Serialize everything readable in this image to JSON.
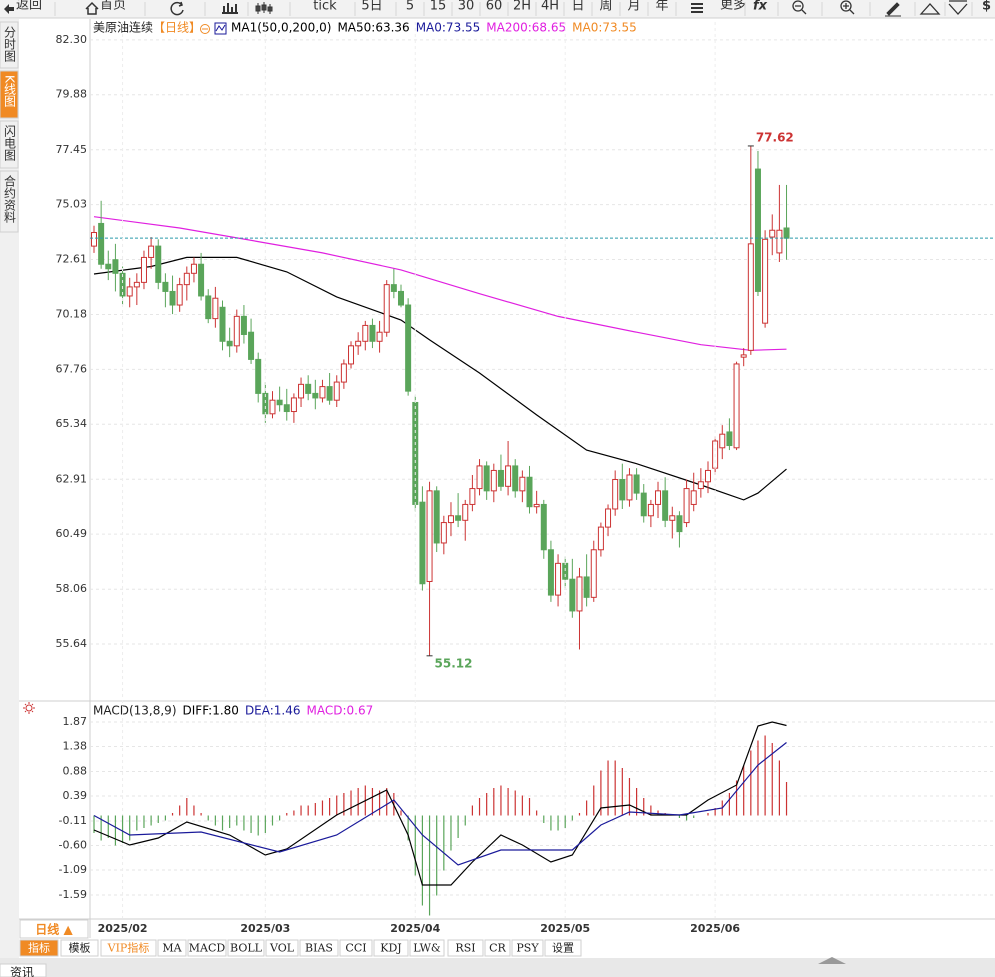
{
  "toolbar": {
    "back": "返回",
    "home": "首页",
    "buttons": [
      "tick",
      "5日",
      "5",
      "15",
      "30",
      "60",
      "2H",
      "4H",
      "日",
      "周",
      "月",
      "年"
    ],
    "more": "更多",
    "fx": "fx",
    "end": "$"
  },
  "sidebar": [
    "分时图",
    "K线图",
    "闪电图",
    "合约资料"
  ],
  "sidebar_active": 1,
  "period_button": "日线 ▲",
  "indicator_tabs": [
    "指标",
    "模板",
    "VIP指标",
    "MA",
    "MACD",
    "BOLL",
    "VOL",
    "BIAS",
    "CCI",
    "KDJ",
    "LW&",
    "RSI",
    "CR",
    "PSY",
    "设置"
  ],
  "footer_tab": "资讯",
  "chart_data": [
    {
      "type": "candlestick",
      "title": "美原油连续",
      "period": "【日线】",
      "legend": [
        {
          "text": "MA1(50,0,200,0)",
          "color": "#000000"
        },
        {
          "text": "MA50:63.36",
          "color": "#000000"
        },
        {
          "text": "MA0:73.55",
          "color": "#1a1a9a"
        },
        {
          "text": "MA200:68.65",
          "color": "#e020e0"
        },
        {
          "text": "MA0:73.55",
          "color": "#f08a24"
        }
      ],
      "up_color": "#cc3333",
      "down_color": "#5aa55a",
      "mark_extremes": true,
      "last_line": true,
      "last_line_color": "#2a9aaa",
      "candles": [
        [
          73.2,
          74.1,
          72.9,
          73.8
        ],
        [
          74.2,
          75.2,
          72.2,
          72.4
        ],
        [
          72.4,
          73.0,
          71.7,
          72.2
        ],
        [
          72.6,
          73.3,
          71.2,
          72.0
        ],
        [
          72.0,
          72.3,
          70.6,
          71.0
        ],
        [
          71.0,
          71.8,
          70.5,
          71.4
        ],
        [
          71.4,
          72.0,
          70.6,
          71.6
        ],
        [
          71.6,
          73.0,
          71.3,
          72.7
        ],
        [
          72.7,
          73.6,
          72.2,
          73.2
        ],
        [
          73.2,
          73.5,
          71.3,
          71.6
        ],
        [
          71.6,
          72.0,
          70.5,
          71.2
        ],
        [
          71.2,
          71.9,
          70.2,
          70.6
        ],
        [
          70.6,
          71.8,
          70.3,
          71.5
        ],
        [
          71.5,
          72.3,
          70.8,
          72.0
        ],
        [
          72.0,
          72.7,
          71.6,
          72.4
        ],
        [
          72.4,
          72.9,
          70.8,
          71.0
        ],
        [
          71.0,
          71.3,
          69.8,
          70.0
        ],
        [
          70.0,
          71.4,
          69.6,
          70.9
        ],
        [
          70.5,
          70.8,
          68.6,
          69.0
        ],
        [
          69.0,
          69.6,
          68.3,
          68.8
        ],
        [
          68.8,
          70.4,
          68.5,
          70.1
        ],
        [
          70.1,
          70.6,
          68.9,
          69.3
        ],
        [
          69.4,
          70.0,
          68.0,
          68.2
        ],
        [
          68.2,
          68.5,
          66.3,
          66.7
        ],
        [
          66.7,
          67.2,
          65.4,
          65.8
        ],
        [
          65.8,
          66.8,
          65.6,
          66.4
        ],
        [
          66.4,
          67.0,
          65.9,
          66.2
        ],
        [
          66.2,
          66.9,
          65.5,
          65.9
        ],
        [
          65.9,
          66.7,
          65.4,
          66.5
        ],
        [
          66.5,
          67.4,
          66.1,
          67.1
        ],
        [
          67.1,
          67.5,
          66.4,
          66.7
        ],
        [
          66.7,
          67.3,
          66.0,
          66.5
        ],
        [
          66.5,
          67.3,
          66.3,
          67.0
        ],
        [
          67.0,
          67.6,
          66.2,
          66.4
        ],
        [
          66.4,
          67.5,
          66.1,
          67.2
        ],
        [
          67.2,
          68.2,
          66.9,
          68.0
        ],
        [
          68.0,
          69.0,
          67.8,
          68.8
        ],
        [
          68.8,
          69.4,
          68.4,
          69.0
        ],
        [
          69.0,
          69.9,
          68.6,
          69.7
        ],
        [
          69.7,
          70.0,
          68.7,
          69.0
        ],
        [
          69.0,
          69.9,
          68.5,
          69.4
        ],
        [
          69.4,
          71.7,
          69.2,
          71.5
        ],
        [
          71.5,
          72.2,
          70.9,
          71.2
        ],
        [
          71.2,
          71.5,
          70.5,
          70.6
        ],
        [
          70.6,
          70.9,
          66.6,
          66.8
        ],
        [
          66.3,
          66.6,
          61.5,
          61.8
        ],
        [
          61.9,
          62.6,
          58.0,
          58.3
        ],
        [
          58.4,
          62.8,
          55.12,
          62.4
        ],
        [
          62.4,
          62.6,
          59.7,
          60.1
        ],
        [
          60.1,
          61.3,
          59.6,
          61.0
        ],
        [
          61.0,
          61.9,
          60.4,
          61.3
        ],
        [
          61.3,
          62.3,
          60.8,
          61.1
        ],
        [
          61.1,
          62.0,
          60.2,
          61.8
        ],
        [
          61.8,
          63.1,
          61.5,
          62.5
        ],
        [
          62.5,
          63.8,
          62.2,
          63.5
        ],
        [
          63.5,
          63.7,
          62.0,
          62.4
        ],
        [
          62.4,
          63.6,
          61.9,
          63.3
        ],
        [
          63.3,
          64.0,
          62.4,
          62.6
        ],
        [
          62.6,
          64.6,
          62.2,
          63.5
        ],
        [
          63.5,
          63.8,
          62.1,
          62.4
        ],
        [
          62.4,
          63.3,
          61.9,
          63.0
        ],
        [
          63.0,
          63.5,
          61.4,
          61.7
        ],
        [
          61.7,
          62.4,
          61.4,
          61.8
        ],
        [
          61.8,
          62.0,
          59.4,
          59.8
        ],
        [
          59.8,
          60.2,
          57.5,
          57.8
        ],
        [
          57.8,
          59.6,
          57.3,
          59.2
        ],
        [
          59.2,
          59.5,
          58.1,
          58.5
        ],
        [
          58.5,
          59.4,
          56.8,
          57.1
        ],
        [
          57.1,
          59.0,
          55.4,
          58.6
        ],
        [
          58.6,
          59.6,
          57.3,
          57.7
        ],
        [
          57.7,
          60.2,
          57.5,
          59.8
        ],
        [
          59.8,
          61.0,
          59.5,
          60.8
        ],
        [
          60.8,
          61.8,
          60.4,
          61.6
        ],
        [
          61.6,
          63.3,
          61.3,
          62.9
        ],
        [
          62.9,
          63.6,
          61.6,
          62.0
        ],
        [
          62.0,
          63.4,
          61.7,
          63.1
        ],
        [
          63.1,
          63.4,
          62.0,
          62.3
        ],
        [
          62.3,
          62.7,
          61.0,
          61.3
        ],
        [
          61.3,
          62.0,
          60.8,
          61.8
        ],
        [
          61.8,
          62.8,
          61.2,
          62.4
        ],
        [
          62.4,
          63.0,
          60.8,
          61.1
        ],
        [
          61.1,
          61.7,
          60.3,
          61.3
        ],
        [
          61.3,
          61.5,
          59.9,
          60.6
        ],
        [
          61.0,
          62.9,
          60.8,
          62.5
        ],
        [
          61.8,
          63.2,
          61.5,
          62.4
        ],
        [
          62.5,
          63.4,
          62.1,
          62.8
        ],
        [
          62.8,
          63.7,
          62.3,
          63.3
        ],
        [
          63.4,
          64.8,
          63.1,
          64.6
        ],
        [
          64.3,
          65.3,
          63.8,
          64.9
        ],
        [
          65.0,
          65.6,
          64.2,
          64.4
        ],
        [
          64.3,
          68.1,
          64.2,
          68.0
        ],
        [
          68.3,
          68.7,
          67.9,
          68.4
        ],
        [
          68.6,
          77.62,
          68.4,
          73.3
        ],
        [
          76.6,
          77.4,
          71.0,
          71.2
        ],
        [
          69.8,
          73.9,
          69.6,
          73.5
        ],
        [
          73.6,
          74.6,
          72.8,
          73.9
        ],
        [
          72.9,
          75.9,
          72.5,
          73.9
        ],
        [
          74.0,
          75.9,
          72.6,
          73.55
        ]
      ],
      "lines": [
        {
          "color": "#000000",
          "x": [
            0,
            8,
            13,
            20,
            27,
            34,
            43,
            47,
            54,
            62,
            69,
            76,
            85,
            91,
            93,
            97
          ],
          "values": [
            71.97,
            72.3,
            72.7,
            72.7,
            72.06,
            70.96,
            69.94,
            69.06,
            67.6,
            65.75,
            64.2,
            63.6,
            62.66,
            62.0,
            62.3,
            63.36
          ]
        },
        {
          "color": "#e020e0",
          "x": [
            0,
            12,
            23,
            32,
            43,
            54,
            65,
            76,
            85,
            92,
            97
          ],
          "values": [
            74.5,
            74.0,
            73.4,
            72.9,
            72.15,
            71.1,
            70.1,
            69.4,
            68.85,
            68.6,
            68.65
          ]
        }
      ],
      "xlim": [
        -0.56,
        126.2
      ],
      "ylim": [
        53.17,
        83.09
      ],
      "yticks": [
        {
          "value": 82.3,
          "label": "82.30"
        },
        79.88,
        77.45,
        75.03,
        72.61,
        70.18,
        67.76,
        65.34,
        62.91,
        60.49,
        58.06,
        55.64
      ],
      "grid": true
    },
    {
      "type": "macd",
      "title": "MACD(13,8,9)",
      "legend": [
        {
          "text": "DIFF:1.80",
          "color": "#000000"
        },
        {
          "text": "DEA:1.46",
          "color": "#1a1a9a"
        },
        {
          "text": "MACD:0.67",
          "color": "#e020e0"
        }
      ],
      "up_color": "#cc3333",
      "down_color": "#5aa55a",
      "values": [
        -0.35,
        -0.5,
        -0.45,
        -0.6,
        -0.55,
        -0.5,
        -0.3,
        -0.25,
        -0.2,
        -0.15,
        -0.1,
        0.05,
        0.2,
        0.35,
        0.2,
        0.05,
        -0.1,
        -0.2,
        -0.3,
        -0.25,
        -0.2,
        -0.3,
        -0.35,
        -0.4,
        -0.35,
        -0.2,
        -0.1,
        0.05,
        0.1,
        0.2,
        0.2,
        0.25,
        0.3,
        0.35,
        0.4,
        0.45,
        0.5,
        0.55,
        0.6,
        0.55,
        0.5,
        0.55,
        0.45,
        0.1,
        -0.5,
        -1.2,
        -1.8,
        -2.0,
        -1.6,
        -1.1,
        -0.7,
        -0.45,
        -0.2,
        0.2,
        0.35,
        0.45,
        0.55,
        0.6,
        0.55,
        0.5,
        0.4,
        0.35,
        0.1,
        -0.15,
        -0.3,
        -0.3,
        -0.25,
        -0.1,
        0.05,
        0.3,
        0.6,
        0.9,
        1.1,
        1.1,
        0.95,
        0.75,
        0.55,
        0.35,
        0.2,
        0.1,
        0.05,
        0.0,
        -0.05,
        -0.1,
        -0.05,
        0.0,
        0.05,
        0.15,
        0.3,
        0.45,
        0.7,
        1.0,
        1.3,
        1.5,
        1.6,
        1.45,
        1.1,
        0.67
      ],
      "lines": [
        {
          "color": "#000000",
          "x": [
            0,
            5,
            9,
            13,
            19,
            24,
            27,
            34,
            41,
            44,
            46,
            50,
            53,
            57,
            60,
            64,
            67,
            71,
            75,
            78,
            83,
            86,
            90,
            93,
            95,
            97
          ],
          "values": [
            -0.29,
            -0.59,
            -0.45,
            -0.13,
            -0.39,
            -0.79,
            -0.67,
            0.01,
            0.51,
            -0.39,
            -1.39,
            -1.39,
            -0.93,
            -0.39,
            -0.59,
            -0.93,
            -0.79,
            0.15,
            0.21,
            0.01,
            0.01,
            0.31,
            0.61,
            1.79,
            1.87,
            1.8
          ]
        },
        {
          "color": "#1a1a9a",
          "x": [
            0,
            5,
            15,
            26,
            34,
            42,
            46,
            51,
            57,
            62,
            67,
            71,
            75,
            82,
            88,
            93,
            97
          ],
          "values": [
            0.0,
            -0.39,
            -0.33,
            -0.73,
            -0.39,
            0.31,
            -0.39,
            -0.99,
            -0.69,
            -0.69,
            -0.69,
            -0.19,
            0.07,
            0.01,
            0.15,
            1.01,
            1.46
          ]
        }
      ],
      "xlim": [
        -0.56,
        126.2
      ],
      "ylim": [
        -2.05,
        2.25
      ],
      "yticks": [
        1.87,
        1.38,
        0.88,
        0.39,
        -0.11,
        {
          "value": -0.6,
          "label": "-0.60"
        },
        -1.09,
        -1.59
      ],
      "xticks": [
        {
          "value": 4,
          "label": "2025/02"
        },
        {
          "value": 24,
          "label": "2025/03"
        },
        {
          "value": 45,
          "label": "2025/04"
        },
        {
          "value": 66,
          "label": "2025/05"
        },
        {
          "value": 87,
          "label": "2025/06"
        }
      ],
      "grid": true
    }
  ]
}
